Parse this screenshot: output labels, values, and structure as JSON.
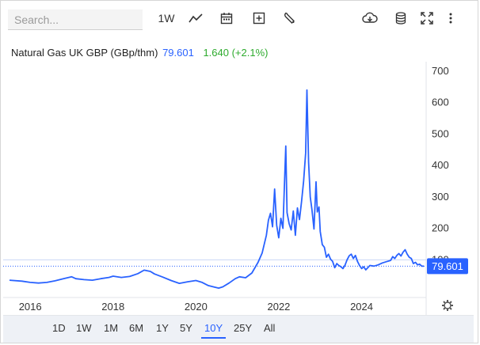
{
  "toolbar": {
    "search_placeholder": "Search...",
    "interval_label": "1W"
  },
  "quote": {
    "name": "Natural Gas UK GBP (GBp/thm)",
    "price": "79.601",
    "change": "1.640 (+2.1%)"
  },
  "chart": {
    "price_tag": "79.601",
    "colors": {
      "line": "#2962ff",
      "up": "#2eab2e",
      "tag": "#2962ff"
    }
  },
  "chart_data": {
    "type": "line",
    "series": [
      {
        "values": [
          [
            2015.5,
            35
          ],
          [
            2015.8,
            32
          ],
          [
            2016.0,
            28
          ],
          [
            2016.2,
            26
          ],
          [
            2016.4,
            28
          ],
          [
            2016.6,
            33
          ],
          [
            2016.8,
            40
          ],
          [
            2017.0,
            46
          ],
          [
            2017.1,
            40
          ],
          [
            2017.3,
            37
          ],
          [
            2017.5,
            35
          ],
          [
            2017.7,
            40
          ],
          [
            2017.9,
            44
          ],
          [
            2018.0,
            48
          ],
          [
            2018.2,
            44
          ],
          [
            2018.4,
            47
          ],
          [
            2018.6,
            56
          ],
          [
            2018.75,
            67
          ],
          [
            2018.9,
            63
          ],
          [
            2019.0,
            55
          ],
          [
            2019.2,
            45
          ],
          [
            2019.4,
            34
          ],
          [
            2019.6,
            25
          ],
          [
            2019.8,
            30
          ],
          [
            2020.0,
            34
          ],
          [
            2020.15,
            28
          ],
          [
            2020.3,
            18
          ],
          [
            2020.45,
            13
          ],
          [
            2020.55,
            10
          ],
          [
            2020.65,
            14
          ],
          [
            2020.8,
            26
          ],
          [
            2020.95,
            40
          ],
          [
            2021.05,
            46
          ],
          [
            2021.2,
            43
          ],
          [
            2021.35,
            58
          ],
          [
            2021.5,
            92
          ],
          [
            2021.6,
            122
          ],
          [
            2021.7,
            178
          ],
          [
            2021.75,
            226
          ],
          [
            2021.8,
            248
          ],
          [
            2021.85,
            205
          ],
          [
            2021.9,
            325
          ],
          [
            2021.95,
            210
          ],
          [
            2022.0,
            170
          ],
          [
            2022.05,
            232
          ],
          [
            2022.1,
            200
          ],
          [
            2022.17,
            462
          ],
          [
            2022.2,
            250
          ],
          [
            2022.25,
            215
          ],
          [
            2022.3,
            195
          ],
          [
            2022.35,
            255
          ],
          [
            2022.4,
            178
          ],
          [
            2022.45,
            265
          ],
          [
            2022.5,
            228
          ],
          [
            2022.55,
            285
          ],
          [
            2022.6,
            350
          ],
          [
            2022.65,
            440
          ],
          [
            2022.68,
            640
          ],
          [
            2022.72,
            410
          ],
          [
            2022.76,
            300
          ],
          [
            2022.8,
            260
          ],
          [
            2022.85,
            198
          ],
          [
            2022.9,
            348
          ],
          [
            2022.93,
            252
          ],
          [
            2022.97,
            268
          ],
          [
            2023.0,
            190
          ],
          [
            2023.05,
            148
          ],
          [
            2023.1,
            140
          ],
          [
            2023.15,
            108
          ],
          [
            2023.2,
            118
          ],
          [
            2023.25,
            102
          ],
          [
            2023.3,
            95
          ],
          [
            2023.35,
            75
          ],
          [
            2023.4,
            88
          ],
          [
            2023.45,
            82
          ],
          [
            2023.5,
            78
          ],
          [
            2023.55,
            72
          ],
          [
            2023.6,
            83
          ],
          [
            2023.65,
            100
          ],
          [
            2023.7,
            113
          ],
          [
            2023.75,
            118
          ],
          [
            2023.8,
            104
          ],
          [
            2023.85,
            114
          ],
          [
            2023.9,
            95
          ],
          [
            2023.95,
            82
          ],
          [
            2024.0,
            72
          ],
          [
            2024.05,
            78
          ],
          [
            2024.1,
            68
          ],
          [
            2024.15,
            75
          ],
          [
            2024.2,
            82
          ],
          [
            2024.3,
            80
          ],
          [
            2024.4,
            84
          ],
          [
            2024.5,
            90
          ],
          [
            2024.6,
            94
          ],
          [
            2024.7,
            98
          ],
          [
            2024.75,
            110
          ],
          [
            2024.8,
            104
          ],
          [
            2024.85,
            114
          ],
          [
            2024.9,
            120
          ],
          [
            2024.95,
            112
          ],
          [
            2025.0,
            124
          ],
          [
            2025.05,
            132
          ],
          [
            2025.1,
            118
          ],
          [
            2025.15,
            108
          ],
          [
            2025.2,
            104
          ],
          [
            2025.25,
            88
          ],
          [
            2025.3,
            92
          ],
          [
            2025.35,
            84
          ],
          [
            2025.4,
            86
          ],
          [
            2025.45,
            80
          ],
          [
            2025.5,
            79.601
          ]
        ]
      }
    ],
    "y_ticks": [
      100,
      200,
      300,
      400,
      500,
      600,
      700
    ],
    "y_tick_labels": [
      "100",
      "200",
      "300",
      "400",
      "500",
      "600",
      "700"
    ],
    "x_ticks": [
      2016,
      2018,
      2020,
      2022,
      2024
    ],
    "x_tick_labels": [
      "2016",
      "2018",
      "2020",
      "2022",
      "2024"
    ],
    "reference_line": 100,
    "last_value": 79.601,
    "xlim": [
      2015.5,
      2025.5
    ],
    "ylim": [
      -20,
      730
    ],
    "grid": false,
    "axis_position": "right"
  },
  "ranges": [
    {
      "label": "1D",
      "active": false
    },
    {
      "label": "1W",
      "active": false
    },
    {
      "label": "1M",
      "active": false
    },
    {
      "label": "6M",
      "active": false
    },
    {
      "label": "1Y",
      "active": false
    },
    {
      "label": "5Y",
      "active": false
    },
    {
      "label": "10Y",
      "active": true
    },
    {
      "label": "25Y",
      "active": false
    },
    {
      "label": "All",
      "active": false
    }
  ]
}
